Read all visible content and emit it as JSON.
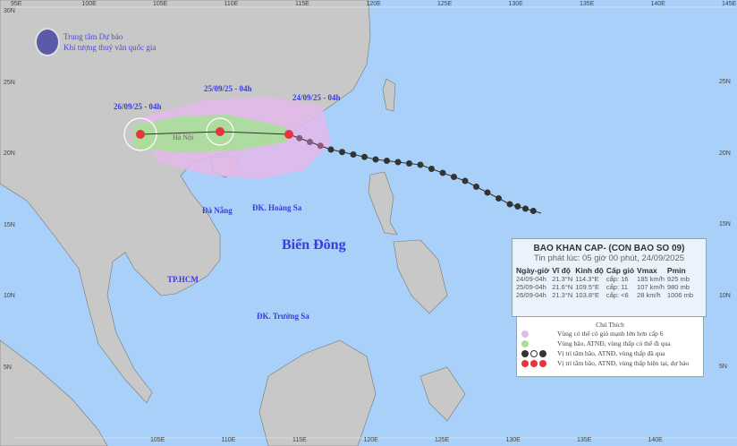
{
  "header": {
    "org_line1": "Trung tâm Dự báo",
    "org_line2": "Khí tượng thuỷ văn quốc gia"
  },
  "axes": {
    "lon_top": [
      "95E",
      "100E",
      "105E",
      "110E",
      "115E",
      "120E",
      "125E",
      "130E",
      "135E",
      "140E",
      "145E"
    ],
    "lon_bottom": [
      "105E",
      "110E",
      "115E",
      "120E",
      "125E",
      "130E",
      "135E",
      "140E"
    ],
    "lat_left": [
      "30N",
      "25N",
      "20N",
      "15N",
      "10N",
      "5N"
    ],
    "lat_right": [
      "25N",
      "20N",
      "15N",
      "10N",
      "5N"
    ]
  },
  "map_labels": {
    "sea": "Biển Đông",
    "hanoi": "Hà Nội",
    "danang": "Đà Nẵng",
    "hoangsa": "ĐK. Hoàng Sa",
    "hcm": "TP.HCM",
    "truongsa": "ĐK. Trường Sa"
  },
  "track_labels": [
    "24/09/25 - 04h",
    "25/09/25 - 04h",
    "26/09/25 - 04h"
  ],
  "info": {
    "title": "BAO KHAN CAP- (CON BAO SO 09)",
    "issued": "Tin phát lúc: 05 giờ 00 phút, 24/09/2025",
    "columns": [
      "Ngày-giờ",
      "Vĩ độ",
      "Kinh độ",
      "Cấp gió",
      "Vmax",
      "Pmin"
    ],
    "rows": [
      [
        "24/09-04h",
        "21.3°N",
        "114.3°E",
        "cấp: 16",
        "185 km/h",
        "925 mb"
      ],
      [
        "25/09-04h",
        "21.6°N",
        "109.5°E",
        "cấp: 11",
        "107 km/h",
        "980 mb"
      ],
      [
        "26/09-04h",
        "21.3°N",
        "103.8°E",
        "cấp: <6",
        "28 km/h",
        "1006 mb"
      ]
    ]
  },
  "legend": {
    "title": "Chú Thích",
    "items": [
      "Vùng có thể có gió mạnh lớn hơn cấp 6",
      "Vùng bão, ATNĐ, vùng thấp có thể đi qua",
      "Vị trí tâm bão, ATNĐ, vùng thấp đã qua",
      "Vị trí tâm bão, ATNĐ, vùng thấp hiện tại, dự báo"
    ]
  },
  "colors": {
    "sea": "#a8d0f8",
    "land": "#c8c8c8",
    "wind_zone": "#e4b8ea",
    "storm_zone": "#a8df98",
    "forecast": "#e8343c",
    "past": "#333333",
    "label": "#3b3bdc"
  }
}
